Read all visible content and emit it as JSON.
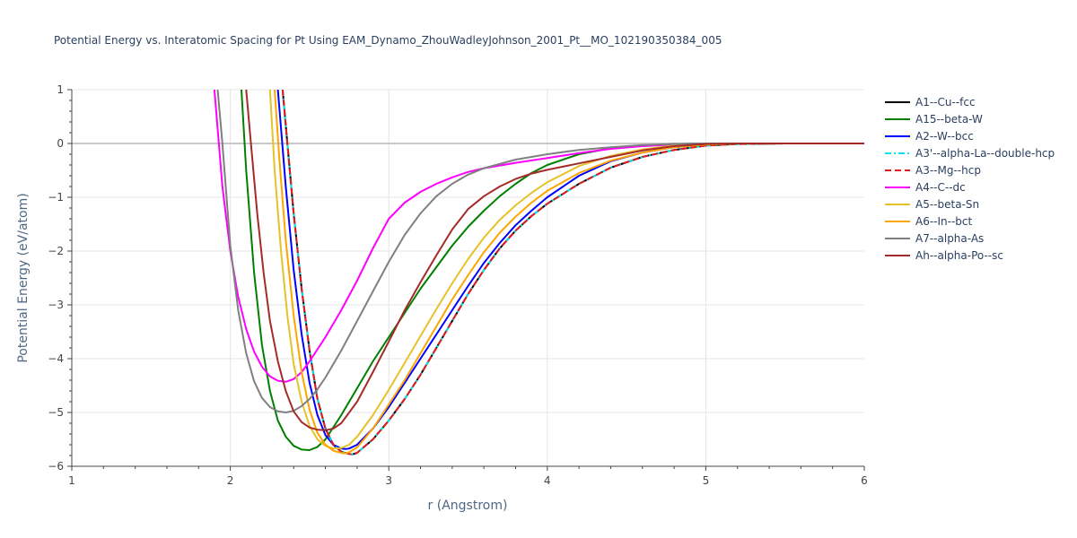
{
  "chart_data": {
    "type": "line",
    "title": "Potential Energy vs. Interatomic Spacing for Pt Using EAM_Dynamo_ZhouWadleyJohnson_2001_Pt__MO_102190350384_005",
    "xlabel": "r (Angstrom)",
    "ylabel": "Potential Energy (eV/atom)",
    "xlim": [
      1,
      6
    ],
    "ylim": [
      -6,
      1
    ],
    "xticks": [
      1,
      2,
      3,
      4,
      5,
      6
    ],
    "yticks": [
      1,
      0,
      -1,
      -2,
      -3,
      -4,
      -5,
      -6
    ],
    "ytick_labels": [
      "1",
      "0",
      "−1",
      "−2",
      "−3",
      "−4",
      "−5",
      "−6"
    ],
    "grid": true,
    "legend_position": "right",
    "series": [
      {
        "name": "A1--Cu--fcc",
        "color": "#000000",
        "dash": "solid",
        "x": [
          2.33,
          2.36,
          2.4,
          2.45,
          2.5,
          2.55,
          2.6,
          2.65,
          2.7,
          2.75,
          2.77,
          2.8,
          2.9,
          3.0,
          3.1,
          3.2,
          3.3,
          3.4,
          3.5,
          3.6,
          3.7,
          3.8,
          3.9,
          4.0,
          4.2,
          4.4,
          4.6,
          4.8,
          5.0,
          5.2,
          5.5,
          6.0
        ],
        "y": [
          1.0,
          0.0,
          -1.3,
          -2.7,
          -3.85,
          -4.75,
          -5.3,
          -5.6,
          -5.73,
          -5.77,
          -5.78,
          -5.75,
          -5.5,
          -5.15,
          -4.75,
          -4.3,
          -3.8,
          -3.3,
          -2.8,
          -2.35,
          -1.95,
          -1.62,
          -1.35,
          -1.12,
          -0.75,
          -0.45,
          -0.25,
          -0.12,
          -0.04,
          -0.01,
          0.0,
          0.0
        ]
      },
      {
        "name": "A15--beta-W",
        "color": "#008000",
        "dash": "solid",
        "x": [
          2.07,
          2.1,
          2.15,
          2.2,
          2.25,
          2.3,
          2.35,
          2.4,
          2.45,
          2.5,
          2.55,
          2.6,
          2.7,
          2.8,
          2.9,
          3.0,
          3.1,
          3.2,
          3.3,
          3.4,
          3.5,
          3.6,
          3.7,
          3.8,
          3.9,
          4.0,
          4.2,
          4.4,
          4.6,
          4.8,
          5.0,
          5.2,
          6.0
        ],
        "y": [
          1.0,
          -0.5,
          -2.4,
          -3.75,
          -4.6,
          -5.15,
          -5.45,
          -5.62,
          -5.69,
          -5.7,
          -5.64,
          -5.5,
          -5.05,
          -4.55,
          -4.05,
          -3.6,
          -3.15,
          -2.7,
          -2.3,
          -1.9,
          -1.55,
          -1.25,
          -0.98,
          -0.75,
          -0.55,
          -0.4,
          -0.2,
          -0.09,
          -0.04,
          -0.01,
          0.0,
          0.0,
          0.0
        ]
      },
      {
        "name": "A2--W--bcc",
        "color": "#0000ff",
        "dash": "solid",
        "x": [
          2.3,
          2.35,
          2.4,
          2.45,
          2.5,
          2.55,
          2.6,
          2.65,
          2.7,
          2.73,
          2.75,
          2.8,
          2.9,
          3.0,
          3.1,
          3.2,
          3.3,
          3.4,
          3.5,
          3.6,
          3.7,
          3.8,
          3.9,
          4.0,
          4.2,
          4.4,
          4.6,
          4.8,
          5.0,
          5.2,
          6.0
        ],
        "y": [
          1.0,
          -0.8,
          -2.35,
          -3.55,
          -4.45,
          -5.05,
          -5.42,
          -5.6,
          -5.67,
          -5.68,
          -5.67,
          -5.6,
          -5.3,
          -4.9,
          -4.45,
          -4.0,
          -3.55,
          -3.1,
          -2.65,
          -2.22,
          -1.85,
          -1.52,
          -1.25,
          -1.0,
          -0.6,
          -0.33,
          -0.17,
          -0.07,
          -0.02,
          0.0,
          0.0
        ]
      },
      {
        "name": "A3'--alpha-La--double-hcp",
        "color": "#00e5ee",
        "dash": "dashdot",
        "x": [
          2.33,
          2.36,
          2.4,
          2.45,
          2.5,
          2.55,
          2.6,
          2.65,
          2.7,
          2.75,
          2.77,
          2.8,
          2.9,
          3.0,
          3.1,
          3.2,
          3.3,
          3.4,
          3.5,
          3.6,
          3.7,
          3.8,
          3.9,
          4.0,
          4.2,
          4.4,
          4.6,
          4.8,
          5.0,
          5.2,
          5.5,
          6.0
        ],
        "y": [
          1.0,
          0.0,
          -1.3,
          -2.7,
          -3.85,
          -4.75,
          -5.3,
          -5.6,
          -5.73,
          -5.77,
          -5.78,
          -5.75,
          -5.5,
          -5.15,
          -4.75,
          -4.3,
          -3.8,
          -3.3,
          -2.8,
          -2.35,
          -1.95,
          -1.62,
          -1.35,
          -1.12,
          -0.75,
          -0.45,
          -0.25,
          -0.12,
          -0.04,
          -0.01,
          0.0,
          0.0
        ]
      },
      {
        "name": "A3--Mg--hcp",
        "color": "#e31a1c",
        "dash": "dash",
        "x": [
          2.33,
          2.36,
          2.4,
          2.45,
          2.5,
          2.55,
          2.6,
          2.65,
          2.7,
          2.75,
          2.77,
          2.8,
          2.9,
          3.0,
          3.1,
          3.2,
          3.3,
          3.4,
          3.5,
          3.6,
          3.7,
          3.8,
          3.9,
          4.0,
          4.2,
          4.4,
          4.6,
          4.8,
          5.0,
          5.2,
          5.5,
          6.0
        ],
        "y": [
          1.0,
          0.0,
          -1.3,
          -2.7,
          -3.85,
          -4.75,
          -5.3,
          -5.6,
          -5.73,
          -5.77,
          -5.78,
          -5.75,
          -5.5,
          -5.15,
          -4.75,
          -4.3,
          -3.8,
          -3.3,
          -2.8,
          -2.35,
          -1.95,
          -1.62,
          -1.35,
          -1.12,
          -0.75,
          -0.45,
          -0.25,
          -0.12,
          -0.04,
          -0.01,
          0.0,
          0.0
        ]
      },
      {
        "name": "A4--C--dc",
        "color": "#ff00ff",
        "dash": "solid",
        "x": [
          1.9,
          1.95,
          2.0,
          2.05,
          2.1,
          2.15,
          2.2,
          2.25,
          2.3,
          2.35,
          2.4,
          2.45,
          2.5,
          2.6,
          2.7,
          2.8,
          2.9,
          3.0,
          3.1,
          3.2,
          3.3,
          3.4,
          3.5,
          3.6,
          3.8,
          4.0,
          4.2,
          4.4,
          4.6,
          4.8,
          5.0,
          5.5,
          6.0
        ],
        "y": [
          1.0,
          -0.8,
          -2.0,
          -2.85,
          -3.45,
          -3.87,
          -4.15,
          -4.33,
          -4.41,
          -4.43,
          -4.38,
          -4.25,
          -4.05,
          -3.6,
          -3.1,
          -2.55,
          -1.95,
          -1.4,
          -1.1,
          -0.9,
          -0.75,
          -0.63,
          -0.53,
          -0.46,
          -0.36,
          -0.27,
          -0.18,
          -0.1,
          -0.05,
          -0.02,
          0.0,
          0.0,
          0.0
        ]
      },
      {
        "name": "A5--beta-Sn",
        "color": "#e6c229",
        "dash": "solid",
        "x": [
          2.25,
          2.28,
          2.32,
          2.36,
          2.4,
          2.45,
          2.5,
          2.55,
          2.6,
          2.65,
          2.7,
          2.75,
          2.8,
          2.9,
          3.0,
          3.1,
          3.2,
          3.3,
          3.4,
          3.5,
          3.6,
          3.7,
          3.8,
          3.9,
          4.0,
          4.2,
          4.4,
          4.6,
          4.8,
          5.0,
          5.2,
          6.0
        ],
        "y": [
          1.0,
          -0.5,
          -2.0,
          -3.2,
          -4.1,
          -4.8,
          -5.25,
          -5.5,
          -5.62,
          -5.67,
          -5.66,
          -5.6,
          -5.45,
          -5.05,
          -4.58,
          -4.08,
          -3.58,
          -3.08,
          -2.6,
          -2.15,
          -1.75,
          -1.42,
          -1.15,
          -0.92,
          -0.72,
          -0.42,
          -0.23,
          -0.11,
          -0.04,
          -0.01,
          0.0,
          0.0
        ]
      },
      {
        "name": "A6--In--bct",
        "color": "#ffa500",
        "dash": "solid",
        "x": [
          2.28,
          2.31,
          2.35,
          2.4,
          2.45,
          2.5,
          2.55,
          2.6,
          2.65,
          2.7,
          2.72,
          2.75,
          2.8,
          2.9,
          3.0,
          3.1,
          3.2,
          3.3,
          3.4,
          3.5,
          3.6,
          3.7,
          3.8,
          3.9,
          4.0,
          4.2,
          4.4,
          4.6,
          4.8,
          5.0,
          5.2,
          6.0
        ],
        "y": [
          1.0,
          -0.3,
          -1.8,
          -3.2,
          -4.25,
          -4.95,
          -5.38,
          -5.6,
          -5.71,
          -5.75,
          -5.76,
          -5.74,
          -5.65,
          -5.3,
          -4.85,
          -4.4,
          -3.9,
          -3.4,
          -2.9,
          -2.45,
          -2.02,
          -1.66,
          -1.36,
          -1.1,
          -0.88,
          -0.55,
          -0.32,
          -0.17,
          -0.07,
          -0.02,
          0.0,
          0.0
        ]
      },
      {
        "name": "A7--alpha-As",
        "color": "#808080",
        "dash": "solid",
        "x": [
          1.92,
          1.95,
          2.0,
          2.05,
          2.1,
          2.15,
          2.2,
          2.25,
          2.3,
          2.35,
          2.4,
          2.45,
          2.5,
          2.55,
          2.6,
          2.7,
          2.8,
          2.9,
          3.0,
          3.1,
          3.2,
          3.3,
          3.4,
          3.5,
          3.6,
          3.8,
          4.0,
          4.2,
          4.4,
          4.6,
          4.8,
          5.0,
          6.0
        ],
        "y": [
          1.0,
          0.0,
          -1.9,
          -3.1,
          -3.9,
          -4.42,
          -4.73,
          -4.9,
          -4.98,
          -5.0,
          -4.97,
          -4.88,
          -4.75,
          -4.57,
          -4.35,
          -3.85,
          -3.3,
          -2.75,
          -2.2,
          -1.7,
          -1.3,
          -0.98,
          -0.75,
          -0.58,
          -0.46,
          -0.3,
          -0.2,
          -0.12,
          -0.07,
          -0.03,
          -0.01,
          0.0,
          0.0
        ]
      },
      {
        "name": "Ah--alpha-Po--sc",
        "color": "#a52a2a",
        "dash": "solid",
        "x": [
          2.1,
          2.13,
          2.17,
          2.21,
          2.25,
          2.3,
          2.35,
          2.4,
          2.45,
          2.5,
          2.55,
          2.6,
          2.65,
          2.7,
          2.8,
          2.9,
          3.0,
          3.1,
          3.2,
          3.3,
          3.4,
          3.5,
          3.6,
          3.7,
          3.8,
          3.9,
          4.0,
          4.2,
          4.4,
          4.6,
          4.8,
          5.0,
          5.2,
          6.0
        ],
        "y": [
          1.0,
          0.0,
          -1.3,
          -2.4,
          -3.3,
          -4.05,
          -4.6,
          -4.98,
          -5.18,
          -5.28,
          -5.32,
          -5.33,
          -5.3,
          -5.2,
          -4.8,
          -4.25,
          -3.68,
          -3.1,
          -2.58,
          -2.08,
          -1.6,
          -1.22,
          -0.98,
          -0.8,
          -0.66,
          -0.56,
          -0.49,
          -0.37,
          -0.25,
          -0.13,
          -0.05,
          -0.01,
          0.0,
          0.0
        ]
      }
    ]
  }
}
